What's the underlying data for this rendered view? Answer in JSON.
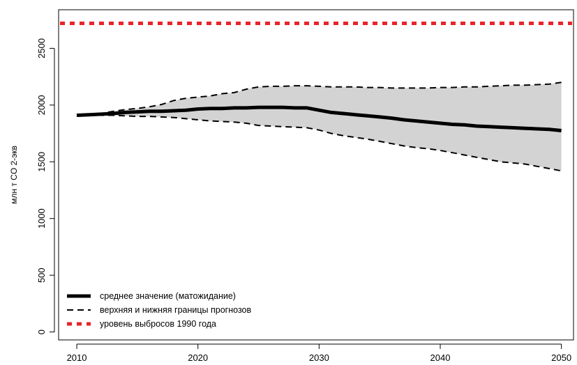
{
  "chart_data": {
    "type": "line",
    "title": "",
    "xlabel": "",
    "ylabel": "млн т CO 2-экв",
    "xlim": [
      2008.5,
      2051.0
    ],
    "ylim": [
      -70,
      2840
    ],
    "x_ticks": [
      2010,
      2020,
      2030,
      2040,
      2050
    ],
    "y_ticks": [
      0,
      500,
      1000,
      1500,
      2000,
      2500
    ],
    "grid": false,
    "legend_position": "bottom-left",
    "years": [
      2010,
      2011,
      2012,
      2013,
      2014,
      2015,
      2016,
      2017,
      2018,
      2019,
      2020,
      2021,
      2022,
      2023,
      2024,
      2025,
      2026,
      2027,
      2028,
      2029,
      2030,
      2031,
      2032,
      2033,
      2034,
      2035,
      2036,
      2037,
      2038,
      2039,
      2040,
      2041,
      2042,
      2043,
      2044,
      2045,
      2046,
      2047,
      2048,
      2049,
      2050
    ],
    "series": [
      {
        "name": "среднее значение (матожидание)",
        "style": "solid-thick",
        "color": "#000000",
        "values": [
          1910,
          1915,
          1920,
          1925,
          1935,
          1940,
          1945,
          1945,
          1950,
          1955,
          1965,
          1970,
          1970,
          1975,
          1975,
          1980,
          1980,
          1980,
          1975,
          1975,
          1955,
          1935,
          1925,
          1915,
          1905,
          1895,
          1885,
          1870,
          1860,
          1850,
          1840,
          1830,
          1825,
          1815,
          1810,
          1805,
          1800,
          1795,
          1790,
          1785,
          1775
        ]
      },
      {
        "name": "верхняя и нижняя границы прогнозов",
        "style": "dashed",
        "color": "#000000",
        "upper": [
          1910,
          1915,
          1925,
          1945,
          1960,
          1970,
          1985,
          2005,
          2040,
          2060,
          2070,
          2080,
          2100,
          2110,
          2140,
          2160,
          2165,
          2165,
          2170,
          2170,
          2165,
          2160,
          2160,
          2160,
          2155,
          2155,
          2150,
          2150,
          2150,
          2150,
          2155,
          2155,
          2160,
          2160,
          2165,
          2170,
          2175,
          2175,
          2180,
          2185,
          2200
        ],
        "lower": [
          1910,
          1910,
          1910,
          1910,
          1905,
          1900,
          1900,
          1895,
          1890,
          1880,
          1870,
          1860,
          1855,
          1850,
          1840,
          1820,
          1815,
          1810,
          1805,
          1800,
          1780,
          1750,
          1730,
          1715,
          1700,
          1680,
          1660,
          1640,
          1625,
          1615,
          1600,
          1580,
          1560,
          1540,
          1520,
          1500,
          1490,
          1480,
          1460,
          1440,
          1420
        ]
      },
      {
        "name": "уровень выбросов 1990 года",
        "style": "dotted-thick",
        "color": "#e8232a",
        "constant": 2720
      }
    ],
    "band_fill": "#d3d3d3"
  }
}
